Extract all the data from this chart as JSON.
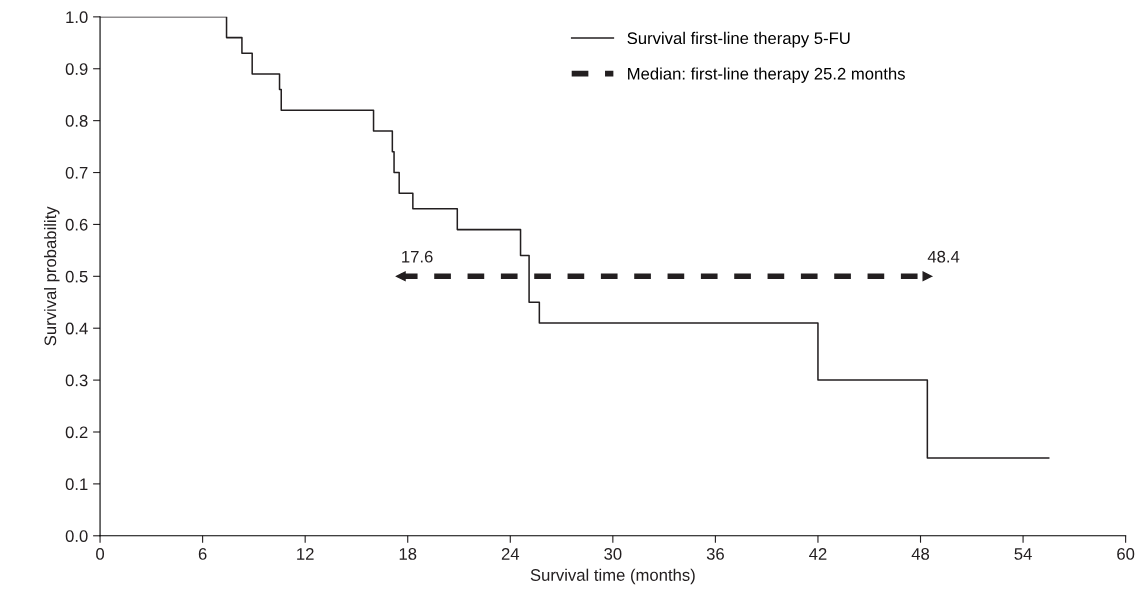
{
  "chart_data": {
    "type": "step",
    "xlabel": "Survival time (months)",
    "ylabel": "Survival probability",
    "xlim": [
      0,
      60
    ],
    "xticks": [
      0,
      6,
      12,
      18,
      24,
      30,
      36,
      42,
      48,
      54,
      60
    ],
    "ylim": [
      0,
      1.0
    ],
    "yticks": [
      {
        "value": 0,
        "label": "0.0"
      },
      0.1,
      0.2,
      0.3,
      0.4,
      0.5,
      0.6,
      0.7,
      0.8,
      0.9,
      {
        "value": 1,
        "label": "1.0"
      }
    ],
    "grid": false,
    "legend": "top right",
    "series": [
      {
        "name": "Survival first-line therapy 5-FU",
        "color": "#231f20",
        "line_style": "solid",
        "x": [
          0,
          7.4,
          8.3,
          8.9,
          10.5,
          10.6,
          16.0,
          17.1,
          17.2,
          17.5,
          18.3,
          20.9,
          24.6,
          25.1,
          25.7,
          42.0,
          48.4,
          55.5
        ],
        "values": [
          1.0,
          0.96,
          0.93,
          0.89,
          0.86,
          0.82,
          0.78,
          0.74,
          0.7,
          0.66,
          0.63,
          0.59,
          0.54,
          0.45,
          0.41,
          0.3,
          0.15,
          0.15
        ]
      },
      {
        "name": "Median: first-line therapy 25.2 months",
        "type": "line",
        "color": "#231f20",
        "line_style": "dashed",
        "marker": "triangle",
        "x": [
          17.6,
          48.4
        ],
        "values": [
          0.5,
          0.5
        ]
      }
    ],
    "annotations": [
      {
        "text": "17.6",
        "x": 17.6,
        "y": 0.5
      },
      {
        "text": "48.4",
        "x": 48.4,
        "y": 0.5
      }
    ]
  }
}
